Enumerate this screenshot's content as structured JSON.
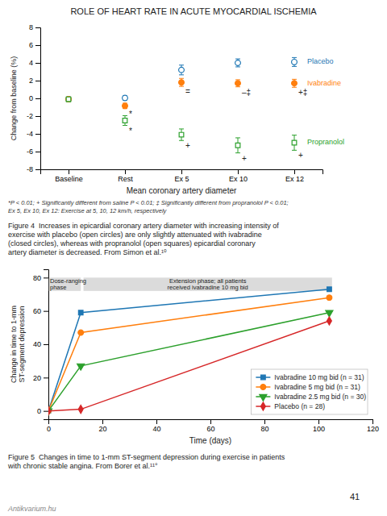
{
  "title": "ROLE OF HEART RATE IN ACUTE MYOCARDIAL ISCHEMIA",
  "page_number": "41",
  "watermark": "Antikvarium.hu",
  "chart_data": [
    {
      "type": "scatter",
      "xlabel": "Mean coronary artery diameter",
      "ylabel": "Change from baseline (%)",
      "categories": [
        "Baseline",
        "Rest",
        "Ex 5",
        "Ex 10",
        "Ex 12"
      ],
      "ylim": [
        -8,
        8
      ],
      "yticks": [
        -8,
        -6,
        -4,
        -2,
        0,
        2,
        4,
        6,
        8
      ],
      "grid": false,
      "series": [
        {
          "name": "Placebo",
          "marker": "open-circle",
          "values": [
            -0.1,
            0.05,
            3.2,
            4.0,
            4.1
          ],
          "errors": [
            0.25,
            0.25,
            0.55,
            0.45,
            0.5
          ]
        },
        {
          "name": "Ivabradine",
          "marker": "circle",
          "values": [
            -0.1,
            -0.85,
            1.8,
            1.7,
            1.7
          ],
          "errors": [
            0.25,
            0.3,
            0.45,
            0.4,
            0.45
          ],
          "annotations": [
            {
              "category": "Rest",
              "text": "*"
            },
            {
              "category": "Ex 5",
              "text": "="
            },
            {
              "category": "Ex 10",
              "text": "–‡"
            },
            {
              "category": "Ex 12",
              "text": "+‡"
            }
          ]
        },
        {
          "name": "Propranolol",
          "marker": "open-square",
          "values": [
            -0.1,
            -2.5,
            -4.1,
            -5.3,
            -5.0
          ],
          "errors": [
            0.25,
            0.55,
            0.65,
            0.85,
            0.85
          ],
          "annotations": [
            {
              "category": "Rest",
              "text": "*"
            },
            {
              "category": "Ex 5",
              "text": "+"
            },
            {
              "category": "Ex 10",
              "text": "+"
            },
            {
              "category": "Ex 12",
              "text": "+"
            }
          ]
        }
      ],
      "footnote": "*P < 0.01; + Significantly different from saline P < 0.01; ‡ Significantly different from propranolol P < 0.01;\nEx 5, Ex 10, Ex 12: Exercise at 5, 10, 12 km/h, respectively",
      "caption": "Figure 4  Increases in epicardial coronary artery diameter with increasing intensity of\nexercise with placebo (open circles) are only slightly attenuated with ivabradine\n(closed circles), whereas with propranolol (open squares) epicardial coronary\nartery diameter is decreased. From Simon et al.¹⁰"
    },
    {
      "type": "line",
      "xlabel": "Time (days)",
      "ylabel": "Change in time to 1-mm\nST-segment depression",
      "x": [
        0,
        12,
        104
      ],
      "xlim": [
        0,
        120
      ],
      "xticks": [
        0,
        20,
        40,
        60,
        80,
        100,
        120
      ],
      "ylim": [
        -5,
        85
      ],
      "yticks": [
        0,
        20,
        40,
        60,
        80
      ],
      "grid": false,
      "legend": "lower right",
      "annotations": [
        {
          "text": "Dose-ranging\nphase",
          "x": [
            0,
            12
          ],
          "y": [
            72,
            80
          ]
        },
        {
          "text": "Extension phase; all patients\nreceived ivabradine 10 mg bid",
          "x": [
            13,
            105
          ],
          "y": [
            72,
            80
          ]
        }
      ],
      "series": [
        {
          "name": "Ivabradine 10 mg bid (n = 31)",
          "marker": "square",
          "values": [
            0,
            59,
            73
          ]
        },
        {
          "name": "Ivabradine 5 mg bid (n = 31)",
          "marker": "circle",
          "values": [
            0,
            47,
            68
          ]
        },
        {
          "name": "Ivabradine 2.5 mg bid (n = 30)",
          "marker": "triangle-down",
          "values": [
            0,
            27,
            59
          ]
        },
        {
          "name": "Placebo (n = 28)",
          "marker": "diamond",
          "values": [
            0,
            1,
            54
          ]
        }
      ],
      "caption": "Figure 5  Changes in time to 1-mm ST-segment depression during exercise in patients\nwith chronic stable angina. From Borer et al.¹¹°"
    }
  ]
}
